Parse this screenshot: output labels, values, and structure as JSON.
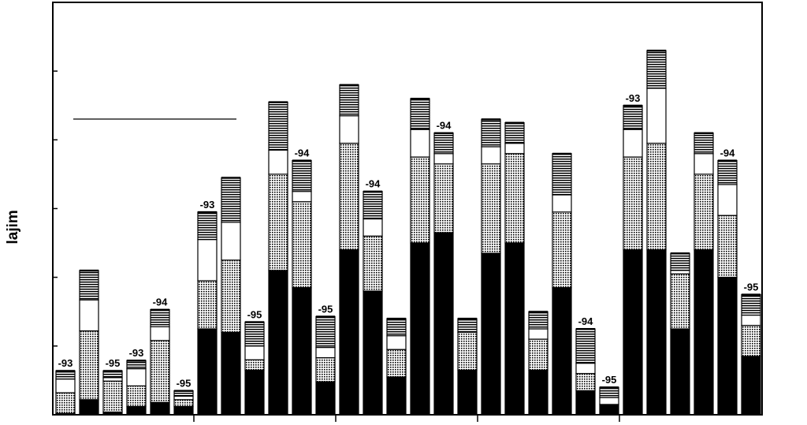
{
  "chart_data": {
    "type": "bar",
    "stacked": true,
    "ylabel": "lajim",
    "ylim": [
      0,
      600
    ],
    "grid": false,
    "legend": "none",
    "series": [
      {
        "pattern": "solid",
        "color": "#000000",
        "values": [
          2,
          22,
          4,
          12,
          18,
          12,
          125,
          120,
          65,
          210,
          185,
          48,
          240,
          180,
          55,
          250,
          265,
          65,
          235,
          250,
          65,
          185,
          35,
          15,
          240,
          240,
          125,
          240,
          200,
          85
        ]
      },
      {
        "pattern": "dotted-grid",
        "color": "#555555",
        "values": [
          30,
          100,
          45,
          30,
          90,
          10,
          70,
          105,
          15,
          140,
          125,
          35,
          155,
          80,
          40,
          125,
          100,
          55,
          130,
          130,
          45,
          110,
          25,
          0,
          135,
          155,
          80,
          110,
          90,
          45
        ]
      },
      {
        "pattern": "white",
        "color": "#ffffff",
        "values": [
          20,
          45,
          5,
          25,
          20,
          5,
          60,
          55,
          20,
          35,
          15,
          15,
          40,
          25,
          20,
          40,
          15,
          0,
          25,
          15,
          15,
          25,
          15,
          10,
          40,
          80,
          5,
          30,
          45,
          15
        ]
      },
      {
        "pattern": "horizontal-lines",
        "color": "#333333",
        "values": [
          12,
          43,
          10,
          12,
          25,
          8,
          40,
          65,
          35,
          70,
          45,
          45,
          45,
          40,
          25,
          45,
          30,
          20,
          40,
          30,
          25,
          60,
          50,
          15,
          35,
          55,
          25,
          30,
          35,
          30
        ]
      }
    ],
    "bar_labels": [
      "-93",
      "",
      "-95",
      "-93",
      "-94",
      "-95",
      "-93",
      "",
      "-95",
      "",
      "-94",
      "-95",
      "",
      "-94",
      "",
      "",
      "-94",
      "",
      "",
      "",
      "",
      "",
      "-94",
      "-95",
      "-93",
      "",
      "",
      "",
      "-94",
      "-95"
    ]
  }
}
